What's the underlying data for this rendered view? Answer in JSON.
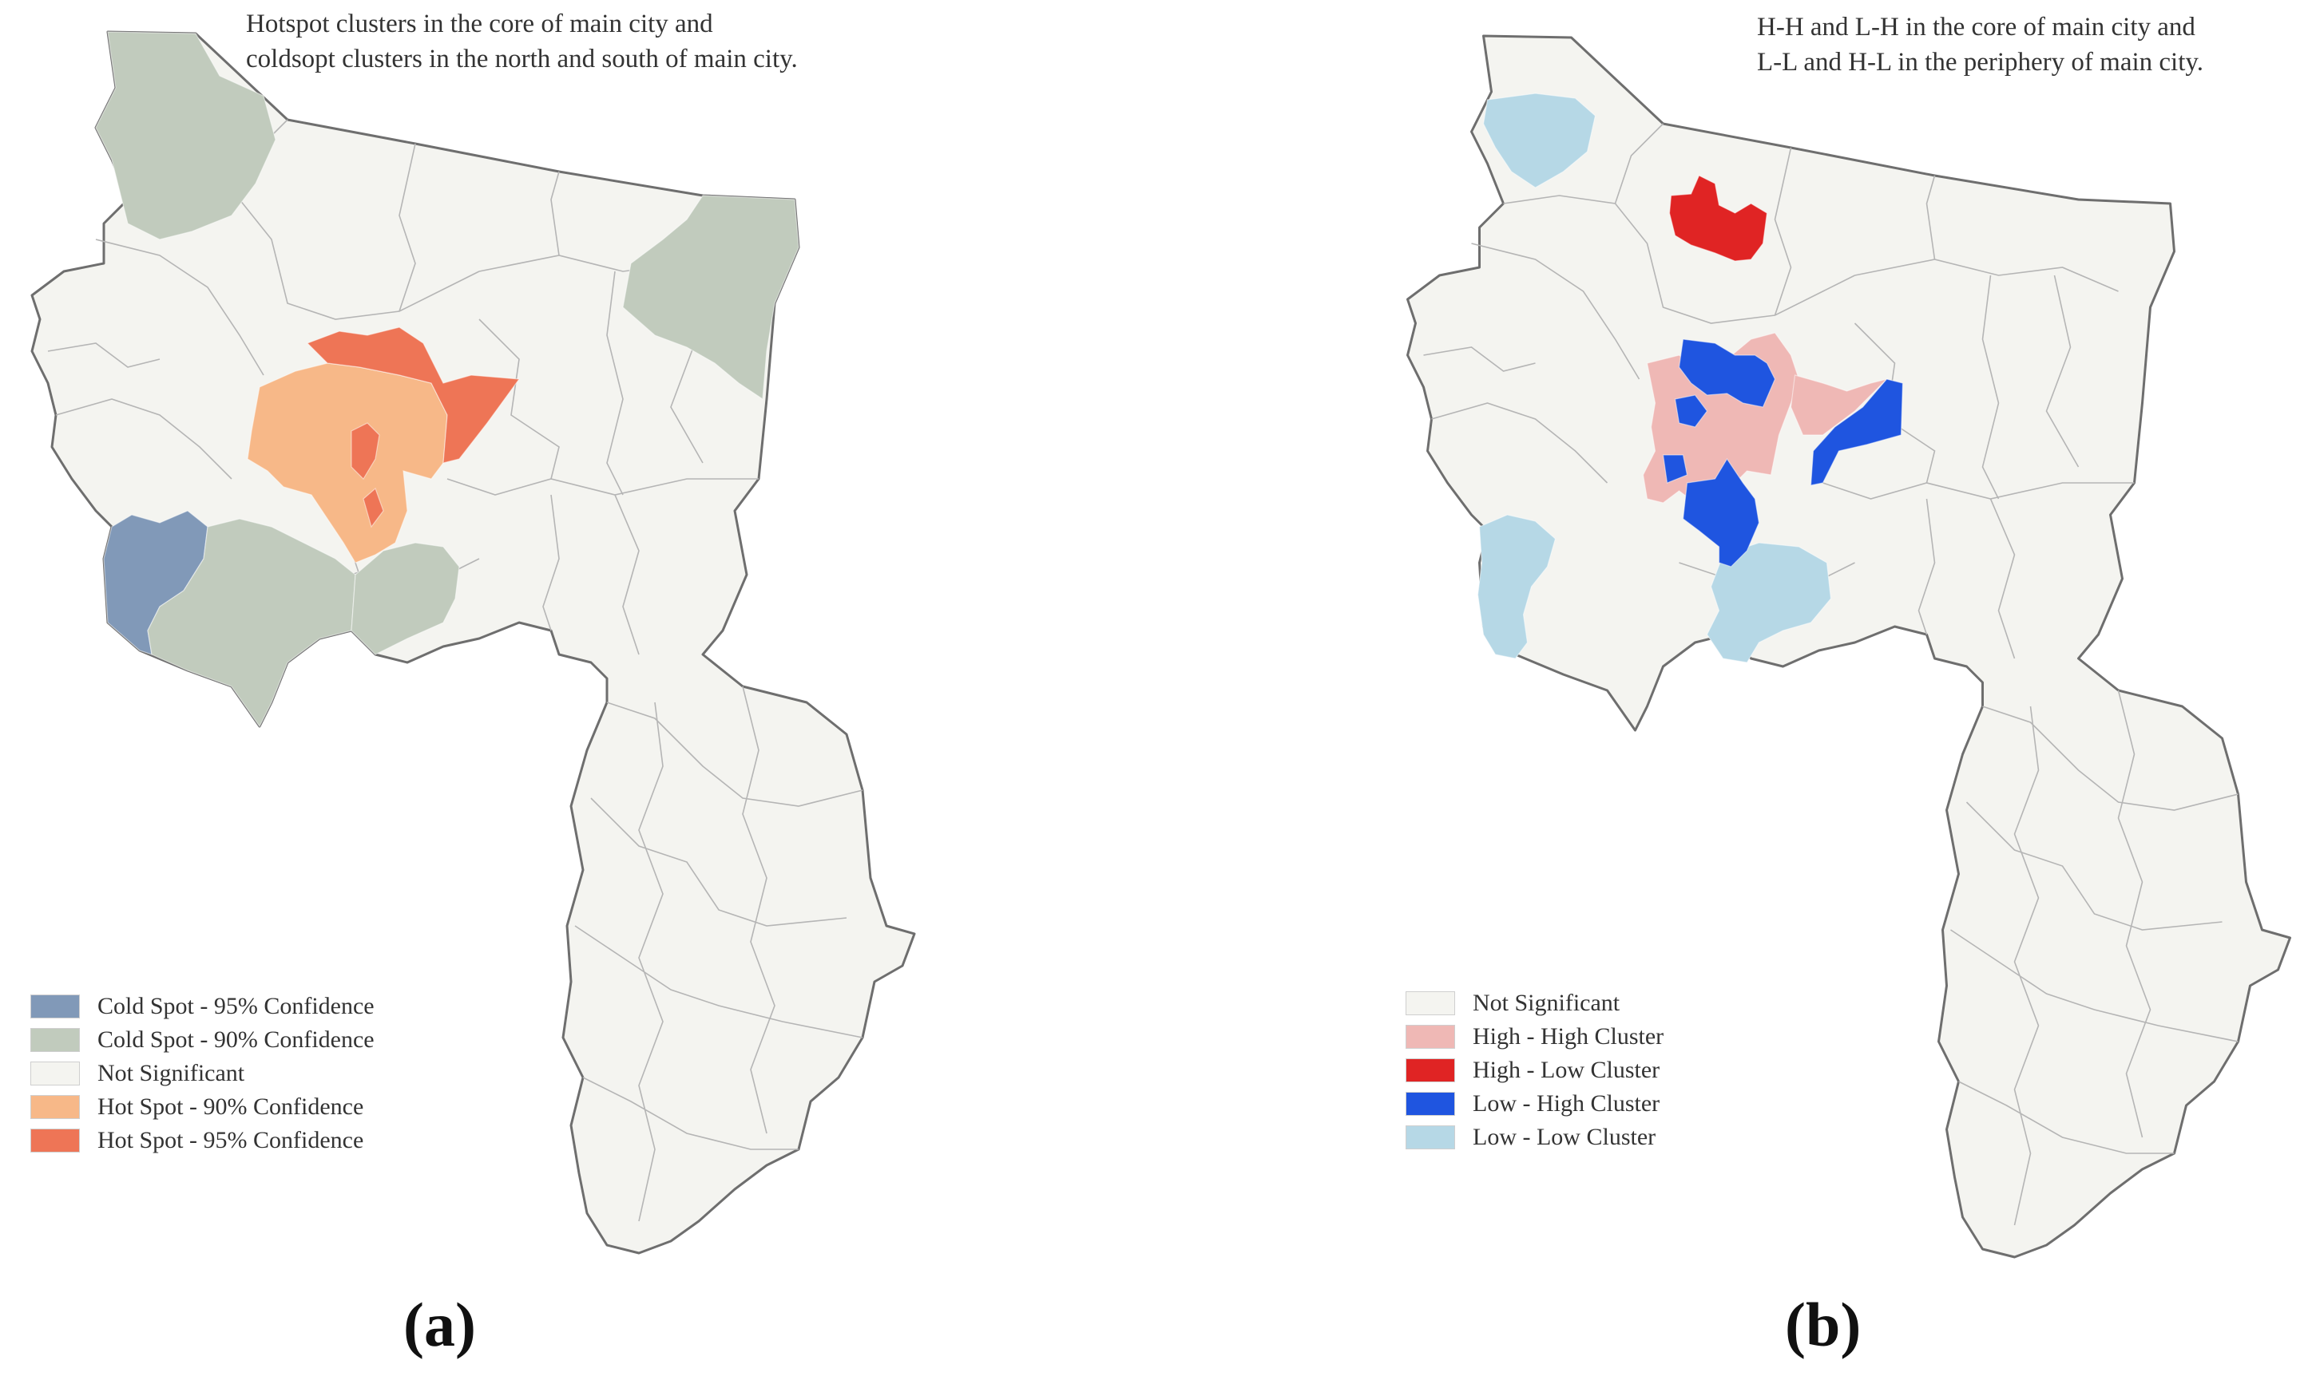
{
  "panels": [
    {
      "caption_line1": "Hotspot clusters in the core of main city and",
      "caption_line2": "coldsopt clusters in the north and south of main city.",
      "label": "(a)",
      "legend": [
        {
          "label": "Cold Spot - 95% Confidence",
          "color": "#8199b8"
        },
        {
          "label": "Cold Spot - 90% Confidence",
          "color": "#c1cbbd"
        },
        {
          "label": "Not Significant",
          "color": "#f4f4f0"
        },
        {
          "label": "Hot Spot - 90% Confidence",
          "color": "#f7b888"
        },
        {
          "label": "Hot Spot - 95% Confidence",
          "color": "#ee7556"
        }
      ]
    },
    {
      "caption_line1": "H-H and L-H in the core of main city and",
      "caption_line2": "L-L and H-L in the periphery of main city.",
      "label": "(b)",
      "legend": [
        {
          "label": "Not Significant",
          "color": "#f4f4f0"
        },
        {
          "label": "High - High Cluster",
          "color": "#efb8b5"
        },
        {
          "label": "High - Low Cluster",
          "color": "#e02424"
        },
        {
          "label": "Low - High Cluster",
          "color": "#1f55e0"
        },
        {
          "label": "Low - Low Cluster",
          "color": "#b6d8e6"
        }
      ]
    }
  ]
}
